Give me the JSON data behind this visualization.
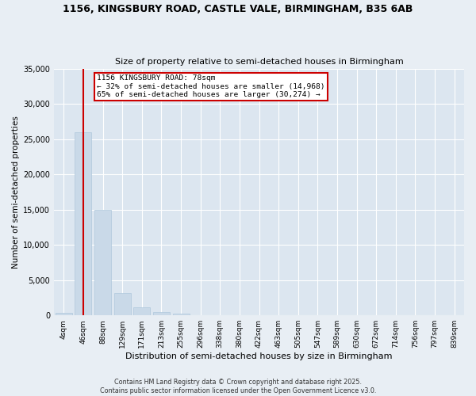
{
  "title_line1": "1156, KINGSBURY ROAD, CASTLE VALE, BIRMINGHAM, B35 6AB",
  "title_line2": "Size of property relative to semi-detached houses in Birmingham",
  "xlabel": "Distribution of semi-detached houses by size in Birmingham",
  "ylabel": "Number of semi-detached properties",
  "footer_line1": "Contains HM Land Registry data © Crown copyright and database right 2025.",
  "footer_line2": "Contains public sector information licensed under the Open Government Licence v3.0.",
  "property_label": "1156 KINGSBURY ROAD: 78sqm",
  "pct_smaller": 32,
  "pct_larger": 65,
  "count_smaller": 14968,
  "count_larger": 30274,
  "bin_labels": [
    "4sqm",
    "46sqm",
    "88sqm",
    "129sqm",
    "171sqm",
    "213sqm",
    "255sqm",
    "296sqm",
    "338sqm",
    "380sqm",
    "422sqm",
    "463sqm",
    "505sqm",
    "547sqm",
    "589sqm",
    "630sqm",
    "672sqm",
    "714sqm",
    "756sqm",
    "797sqm",
    "839sqm"
  ],
  "bar_values": [
    400,
    26000,
    15000,
    3200,
    1200,
    450,
    200,
    0,
    0,
    0,
    0,
    0,
    0,
    0,
    0,
    0,
    0,
    0,
    0,
    0,
    0
  ],
  "bar_color": "#c9d9e8",
  "bar_edgecolor": "#afc8dc",
  "vline_color": "#cc0000",
  "annotation_box_edgecolor": "#cc0000",
  "background_color": "#e8eef4",
  "plot_background": "#dce6f0",
  "grid_color": "#ffffff",
  "ylim": [
    0,
    35000
  ],
  "yticks": [
    0,
    5000,
    10000,
    15000,
    20000,
    25000,
    30000,
    35000
  ],
  "vline_bin_index": 1,
  "annotation_bin_index": 2
}
